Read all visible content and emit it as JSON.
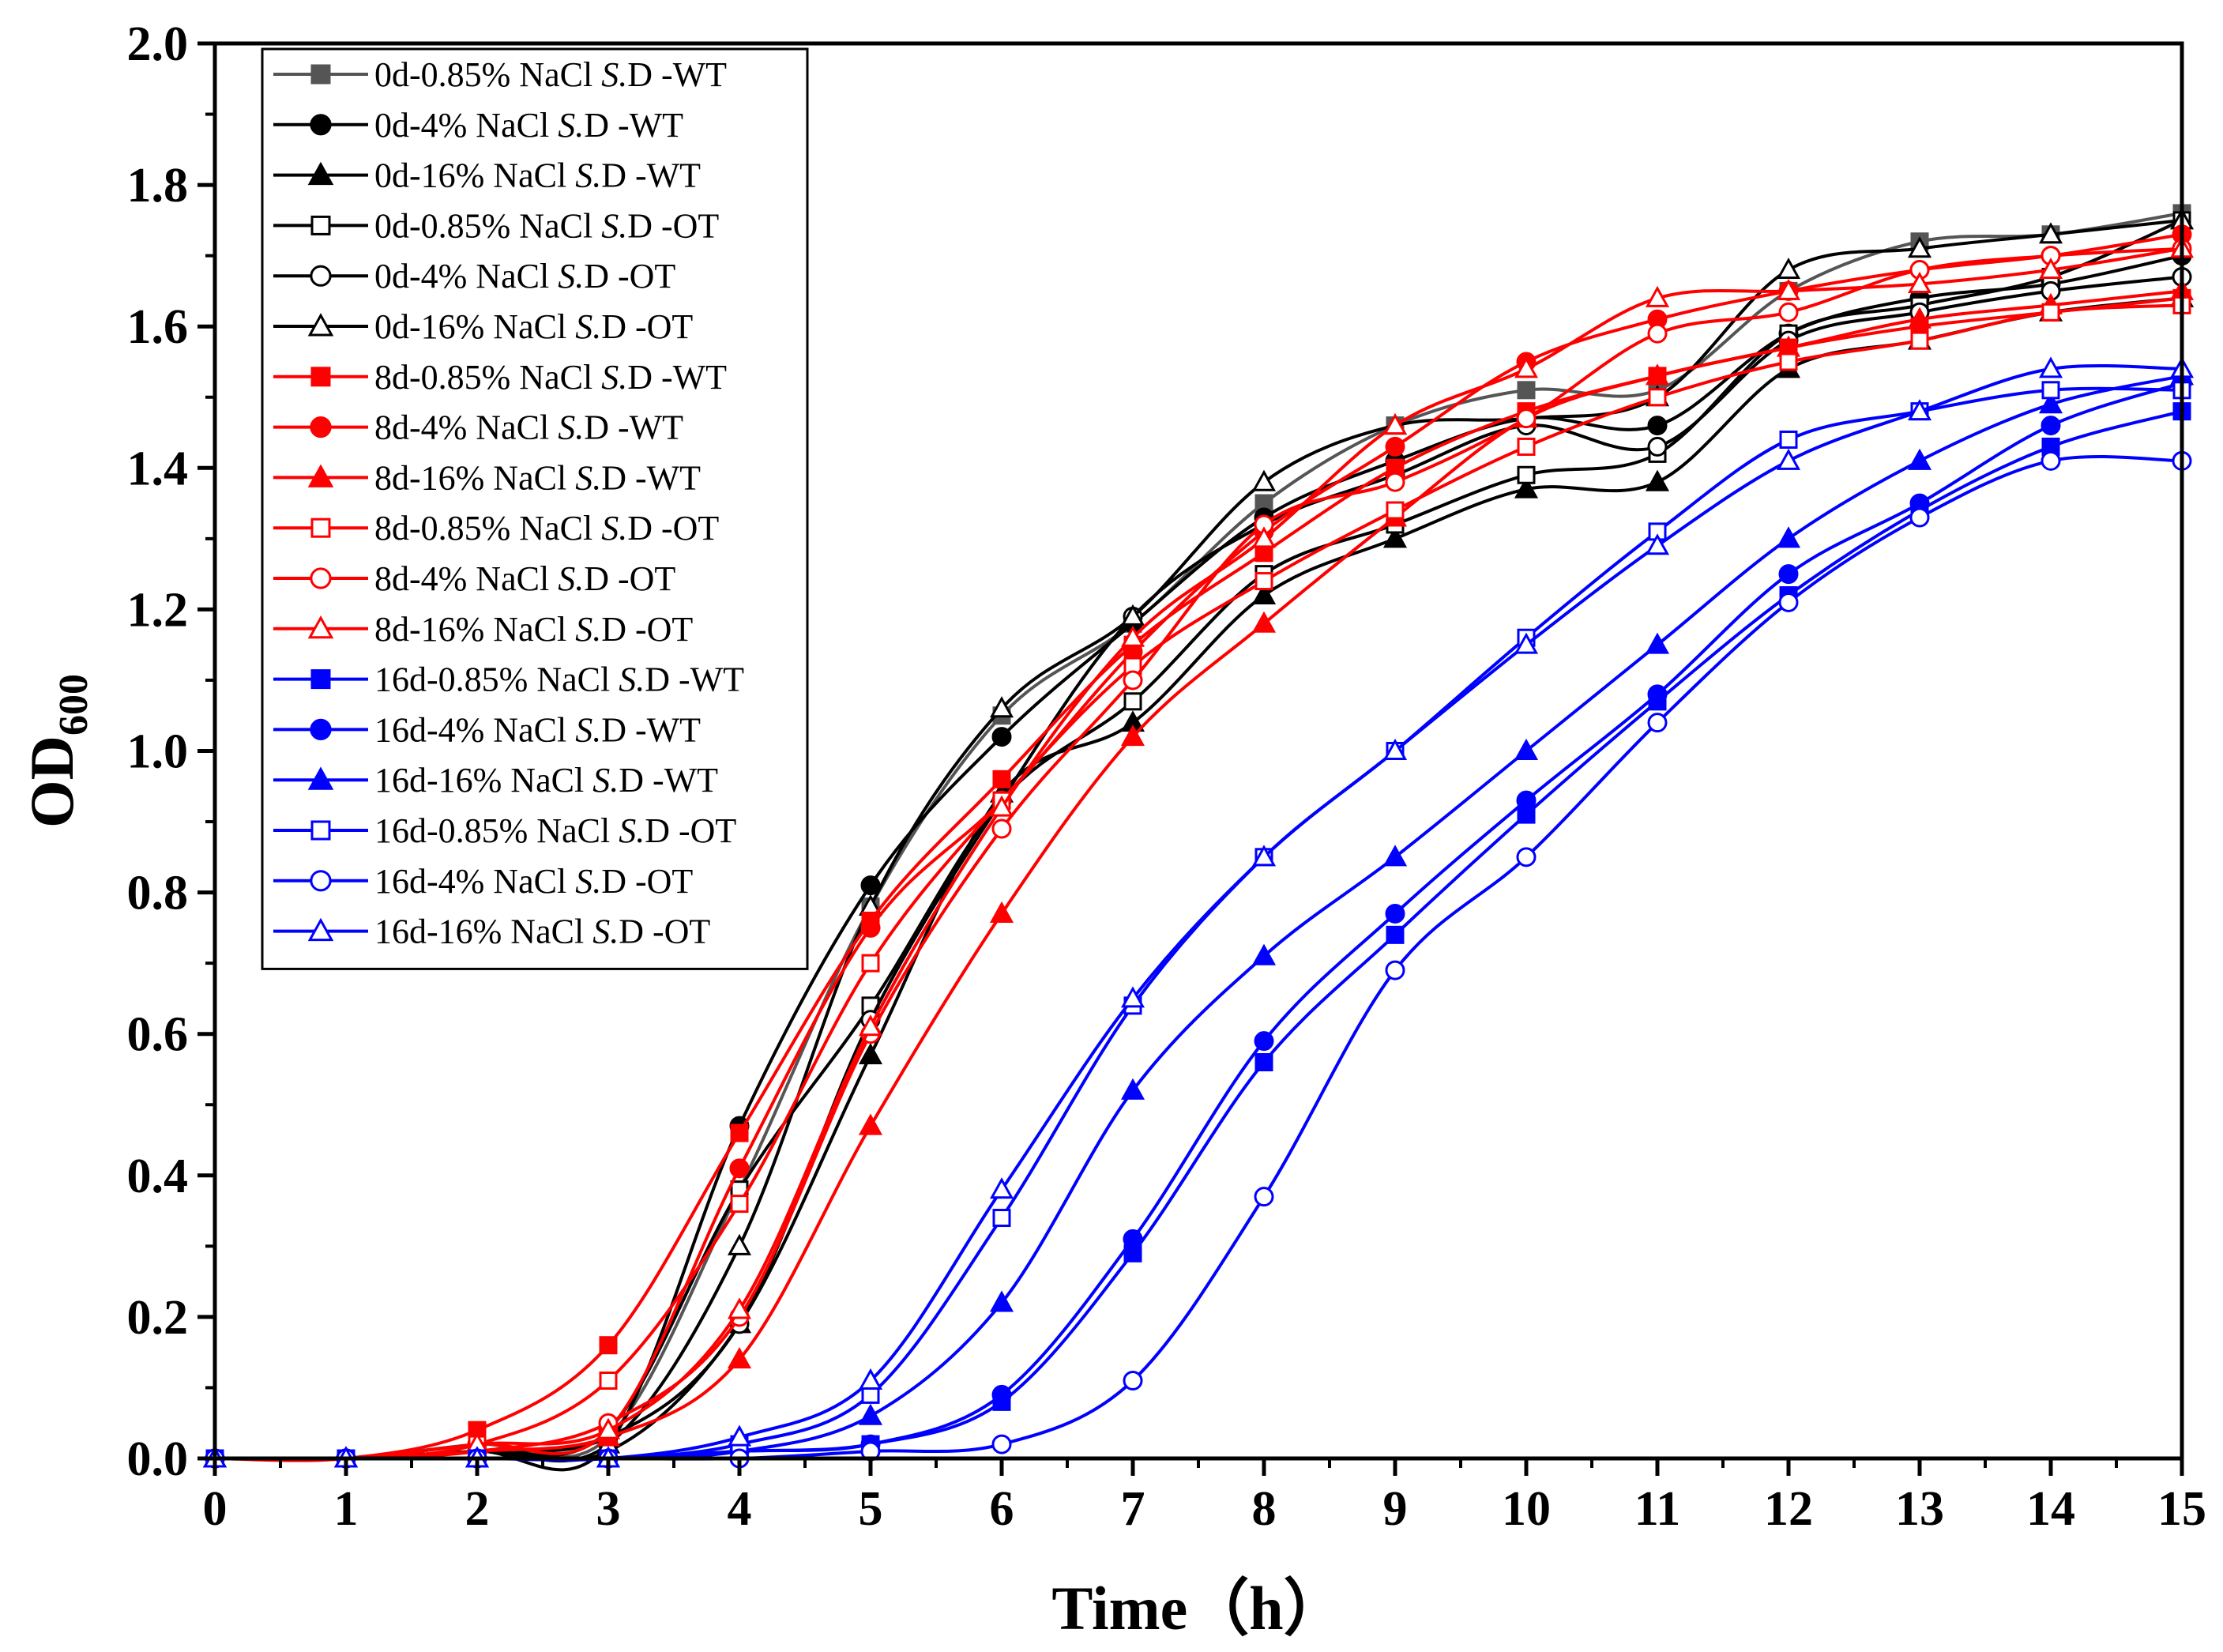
{
  "chart_data": {
    "type": "line",
    "title": "",
    "xlabel": "Time（h）",
    "ylabel": "OD",
    "ylabel_subscript": "600",
    "xlim": [
      0,
      15
    ],
    "ylim": [
      0,
      2.0
    ],
    "x_ticks": [
      "0",
      "1",
      "2",
      "3",
      "4",
      "5",
      "6",
      "7",
      "8",
      "9",
      "10",
      "11",
      "12",
      "13",
      "14",
      "15"
    ],
    "y_ticks": [
      "0.0",
      "0.2",
      "0.4",
      "0.6",
      "0.8",
      "1.0",
      "1.2",
      "1.4",
      "1.6",
      "1.8",
      "2.0"
    ],
    "grid": false,
    "legend_position": "top-left",
    "x": [
      0,
      1,
      2,
      3,
      4,
      5,
      6,
      7,
      8,
      9,
      10,
      11,
      12,
      13,
      14,
      15
    ],
    "series": [
      {
        "prefix": "0d-0.85% NaCl ",
        "italic": "S.",
        "suffix": "D -WT",
        "color": "#555555",
        "marker": "square",
        "filled": true,
        "values": [
          0,
          0,
          0.02,
          0.03,
          0.38,
          0.78,
          1.05,
          1.18,
          1.35,
          1.46,
          1.51,
          1.51,
          1.65,
          1.72,
          1.73,
          1.76
        ]
      },
      {
        "prefix": "0d-4% NaCl ",
        "italic": "S.",
        "suffix": "D -WT",
        "color": "#000000",
        "marker": "circle",
        "filled": true,
        "values": [
          0,
          0,
          0.01,
          0.02,
          0.47,
          0.81,
          1.02,
          1.18,
          1.33,
          1.41,
          1.47,
          1.46,
          1.59,
          1.64,
          1.66,
          1.7
        ]
      },
      {
        "prefix": "0d-16% NaCl ",
        "italic": "S.",
        "suffix": "D -WT",
        "color": "#000000",
        "marker": "triangle",
        "filled": true,
        "values": [
          0,
          0,
          0.01,
          0.01,
          0.19,
          0.57,
          0.94,
          1.04,
          1.22,
          1.3,
          1.37,
          1.38,
          1.54,
          1.58,
          1.62,
          1.64
        ]
      },
      {
        "prefix": "0d-0.85% NaCl ",
        "italic": "S.",
        "suffix": "D -OT",
        "color": "#000000",
        "marker": "square",
        "filled": false,
        "values": [
          0,
          0,
          0.01,
          0.04,
          0.38,
          0.64,
          0.93,
          1.07,
          1.25,
          1.32,
          1.39,
          1.42,
          1.59,
          1.63,
          1.67,
          1.75
        ]
      },
      {
        "prefix": "0d-4% NaCl ",
        "italic": "S.",
        "suffix": "D -OT",
        "color": "#000000",
        "marker": "circle",
        "filled": false,
        "values": [
          0,
          0,
          0.01,
          0.03,
          0.19,
          0.62,
          0.93,
          1.19,
          1.32,
          1.39,
          1.46,
          1.43,
          1.58,
          1.62,
          1.65,
          1.67
        ]
      },
      {
        "prefix": "0d-16% NaCl ",
        "italic": "S.",
        "suffix": "D -OT",
        "color": "#000000",
        "marker": "triangle",
        "filled": false,
        "values": [
          0,
          0,
          0.01,
          0.02,
          0.3,
          0.78,
          1.06,
          1.19,
          1.38,
          1.46,
          1.47,
          1.5,
          1.68,
          1.71,
          1.73,
          1.75
        ]
      },
      {
        "prefix": "8d-0.85% NaCl ",
        "italic": "S.",
        "suffix": "D -WT",
        "color": "#ff0000",
        "marker": "square",
        "filled": true,
        "values": [
          0,
          0,
          0.04,
          0.16,
          0.46,
          0.76,
          0.96,
          1.15,
          1.28,
          1.4,
          1.48,
          1.53,
          1.57,
          1.6,
          1.62,
          1.64
        ]
      },
      {
        "prefix": "8d-4% NaCl ",
        "italic": "S.",
        "suffix": "D -WT",
        "color": "#ff0000",
        "marker": "circle",
        "filled": true,
        "values": [
          0,
          0,
          0.02,
          0.04,
          0.41,
          0.75,
          0.93,
          1.14,
          1.31,
          1.43,
          1.55,
          1.61,
          1.65,
          1.68,
          1.7,
          1.73
        ]
      },
      {
        "prefix": "8d-16% NaCl ",
        "italic": "S.",
        "suffix": "D -WT",
        "color": "#ff0000",
        "marker": "triangle",
        "filled": true,
        "values": [
          0,
          0,
          0.01,
          0.03,
          0.14,
          0.47,
          0.77,
          1.02,
          1.18,
          1.33,
          1.47,
          1.53,
          1.57,
          1.61,
          1.63,
          1.65
        ]
      },
      {
        "prefix": "8d-0.85% NaCl ",
        "italic": "S.",
        "suffix": "D -OT",
        "color": "#ff0000",
        "marker": "square",
        "filled": false,
        "values": [
          0,
          0,
          0.02,
          0.11,
          0.36,
          0.7,
          0.93,
          1.12,
          1.24,
          1.34,
          1.43,
          1.5,
          1.55,
          1.58,
          1.62,
          1.63
        ]
      },
      {
        "prefix": "8d-4% NaCl ",
        "italic": "S.",
        "suffix": "D -OT",
        "color": "#ff0000",
        "marker": "circle",
        "filled": false,
        "values": [
          0,
          0,
          0.01,
          0.05,
          0.2,
          0.6,
          0.89,
          1.1,
          1.32,
          1.38,
          1.47,
          1.59,
          1.62,
          1.68,
          1.7,
          1.71
        ]
      },
      {
        "prefix": "8d-16% NaCl ",
        "italic": "S.",
        "suffix": "D -OT",
        "color": "#ff0000",
        "marker": "triangle",
        "filled": false,
        "values": [
          0,
          0,
          0.02,
          0.04,
          0.21,
          0.61,
          0.92,
          1.16,
          1.3,
          1.46,
          1.54,
          1.64,
          1.65,
          1.66,
          1.68,
          1.71
        ]
      },
      {
        "prefix": "16d-0.85% NaCl ",
        "italic": "S.",
        "suffix": "D -WT",
        "color": "#0000ff",
        "marker": "square",
        "filled": true,
        "values": [
          0,
          0,
          0,
          0,
          0.01,
          0.02,
          0.08,
          0.29,
          0.56,
          0.74,
          0.91,
          1.07,
          1.22,
          1.34,
          1.43,
          1.48
        ]
      },
      {
        "prefix": "16d-4% NaCl ",
        "italic": "S.",
        "suffix": "D -WT",
        "color": "#0000ff",
        "marker": "circle",
        "filled": true,
        "values": [
          0,
          0,
          0,
          0,
          0.01,
          0.02,
          0.09,
          0.31,
          0.59,
          0.77,
          0.93,
          1.08,
          1.25,
          1.35,
          1.46,
          1.52
        ]
      },
      {
        "prefix": "16d-16% NaCl ",
        "italic": "S.",
        "suffix": "D -WT",
        "color": "#0000ff",
        "marker": "triangle",
        "filled": true,
        "values": [
          0,
          0,
          0,
          0,
          0.01,
          0.06,
          0.22,
          0.52,
          0.71,
          0.85,
          1.0,
          1.15,
          1.3,
          1.41,
          1.49,
          1.53
        ]
      },
      {
        "prefix": "16d-0.85% NaCl ",
        "italic": "S.",
        "suffix": "D -OT",
        "color": "#0000ff",
        "marker": "square",
        "filled": false,
        "values": [
          0,
          0,
          0,
          0,
          0.02,
          0.09,
          0.34,
          0.64,
          0.85,
          1.0,
          1.16,
          1.31,
          1.44,
          1.48,
          1.51,
          1.51
        ]
      },
      {
        "prefix": "16d-4% NaCl ",
        "italic": "S.",
        "suffix": "D -OT",
        "color": "#0000ff",
        "marker": "circle",
        "filled": false,
        "values": [
          0,
          0,
          0,
          0,
          0,
          0.01,
          0.02,
          0.11,
          0.37,
          0.69,
          0.85,
          1.04,
          1.21,
          1.33,
          1.41,
          1.41
        ]
      },
      {
        "prefix": "16d-16% NaCl ",
        "italic": "S.",
        "suffix": "D -OT",
        "color": "#0000ff",
        "marker": "triangle",
        "filled": false,
        "values": [
          0,
          0,
          0,
          0,
          0.03,
          0.11,
          0.38,
          0.65,
          0.85,
          1.0,
          1.15,
          1.29,
          1.41,
          1.48,
          1.54,
          1.54
        ]
      }
    ]
  }
}
